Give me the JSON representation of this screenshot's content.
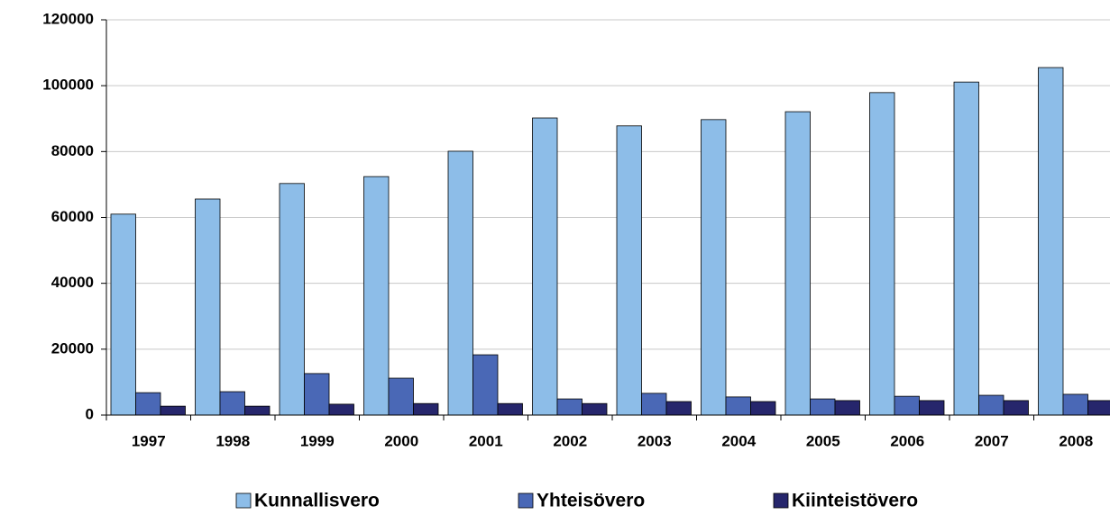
{
  "chart_data": {
    "type": "bar",
    "categories": [
      "1997",
      "1998",
      "1999",
      "2000",
      "2001",
      "2002",
      "2003",
      "2004",
      "2005",
      "2006",
      "2007",
      "2008"
    ],
    "series": [
      {
        "name": "Kunnallisvero",
        "color": "#8dbde8",
        "values": [
          61000,
          65600,
          70300,
          72400,
          80100,
          90200,
          87800,
          89700,
          92100,
          97900,
          101100,
          105500
        ]
      },
      {
        "name": "Yhteisövero",
        "color": "#4a68b6",
        "values": [
          6800,
          7100,
          12600,
          11200,
          18300,
          4900,
          6600,
          5500,
          4900,
          5700,
          6000,
          6300
        ]
      },
      {
        "name": "Kiinteistövero",
        "color": "#26266c",
        "values": [
          2700,
          2700,
          3300,
          3500,
          3500,
          3500,
          4100,
          4100,
          4400,
          4400,
          4400,
          4400
        ]
      }
    ],
    "ylim": [
      0,
      120000
    ],
    "yticks": [
      0,
      20000,
      40000,
      60000,
      80000,
      100000,
      120000
    ],
    "grid": true,
    "legend": "bottom"
  }
}
